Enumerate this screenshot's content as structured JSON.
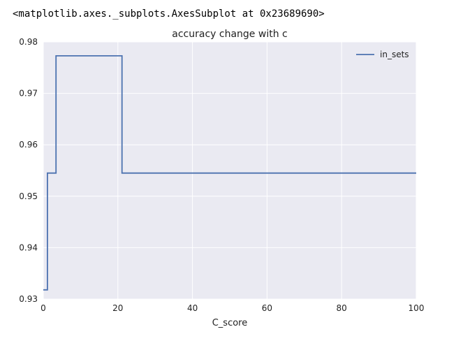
{
  "output_repr": "<matplotlib.axes._subplots.AxesSubplot at 0x23689690>",
  "chart_data": {
    "type": "line",
    "title": "accuracy change with c",
    "xlabel": "C_score",
    "ylabel": "",
    "xlim": [
      0,
      100
    ],
    "ylim": [
      0.93,
      0.98
    ],
    "xticks": [
      0,
      20,
      40,
      60,
      80,
      100
    ],
    "xtick_labels": [
      "0",
      "20",
      "40",
      "60",
      "80",
      "100"
    ],
    "yticks": [
      0.93,
      0.94,
      0.95,
      0.96,
      0.97,
      0.98
    ],
    "ytick_labels": [
      "0.93",
      "0.94",
      "0.95",
      "0.96",
      "0.97",
      "0.98"
    ],
    "grid": true,
    "legend_position": "top-right",
    "background_color": "#eaeaf2",
    "grid_color": "#ffffff",
    "series": [
      {
        "name": "in_sets",
        "color": "#4c72b0",
        "step": true,
        "x": [
          0,
          1.1,
          1.1,
          3.4,
          3.4,
          21.1,
          21.1,
          100
        ],
        "y": [
          0.9318,
          0.9318,
          0.9545,
          0.9545,
          0.9773,
          0.9773,
          0.9545,
          0.9545
        ]
      }
    ]
  }
}
